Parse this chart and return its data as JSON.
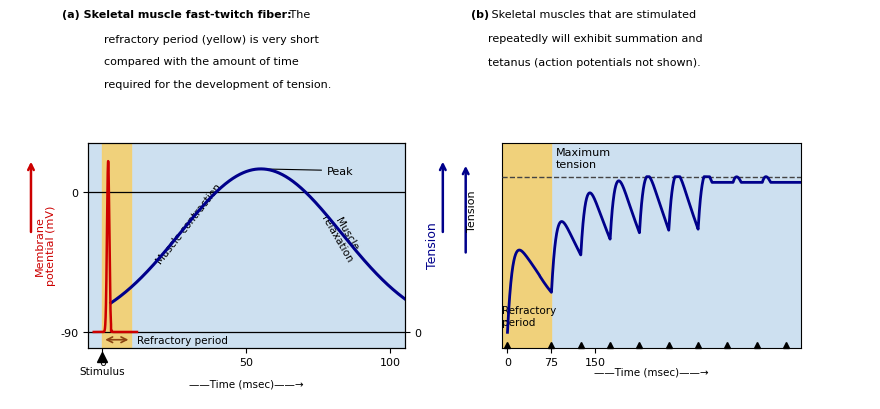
{
  "panel_a": {
    "title_bold": "(a) Skeletal muscle fast-twitch fiber:",
    "title_normal": " The",
    "title_lines": [
      "refractory period (yellow) is very short",
      "compared with the amount of time",
      "required for the development of tension."
    ],
    "bg_color": "#cde0f0",
    "yellow_x_start": 0,
    "yellow_x_end": 10,
    "xlim": [
      -5,
      105
    ],
    "ylim": [
      -100,
      32
    ],
    "xlabel": "Time (msec)",
    "ylabel_left": "Membrane\npotential (mV)",
    "ylabel_right": "Tension",
    "yticks_left": [
      -90,
      0
    ],
    "ytick_labels_left": [
      "-90",
      "0"
    ],
    "ytick_right_val": -90,
    "ytick_right_label": "0",
    "xticks": [
      0,
      50,
      100
    ],
    "ap_color": "#cc0000",
    "tension_color": "#00008b",
    "refractory_label": "Refractory period",
    "stimulus_label": "Stimulus",
    "peak_label": "Peak",
    "contraction_label": "Muscle contraction",
    "relaxation_label": "Muscle\nrelaxation",
    "refrac_arrow_color": "#8B4513"
  },
  "panel_b": {
    "title_bold": "(b)",
    "title_lines": [
      " Skeletal muscles that are stimulated",
      "repeatedly will exhibit summation and",
      "tetanus (action potentials not shown)."
    ],
    "bg_color": "#cde0f0",
    "yellow_x_start": -10,
    "yellow_x_end": 75,
    "xlim": [
      -10,
      500
    ],
    "ylim": [
      -0.08,
      1.0
    ],
    "xlabel": "Time (msec)",
    "ylabel": "Tension",
    "max_tension_label": "Maximum\ntension",
    "refractory_label": "Refractory\nperiod",
    "tension_color": "#00008b",
    "dashed_color": "#444444",
    "max_tension_y": 0.82,
    "stimulus_ticks_x": [
      0,
      75,
      125,
      175,
      225,
      275,
      325,
      375,
      425,
      475
    ],
    "xtick_vals": [
      0,
      75,
      150
    ],
    "xtick_labels": [
      "0",
      "75",
      "150"
    ]
  }
}
